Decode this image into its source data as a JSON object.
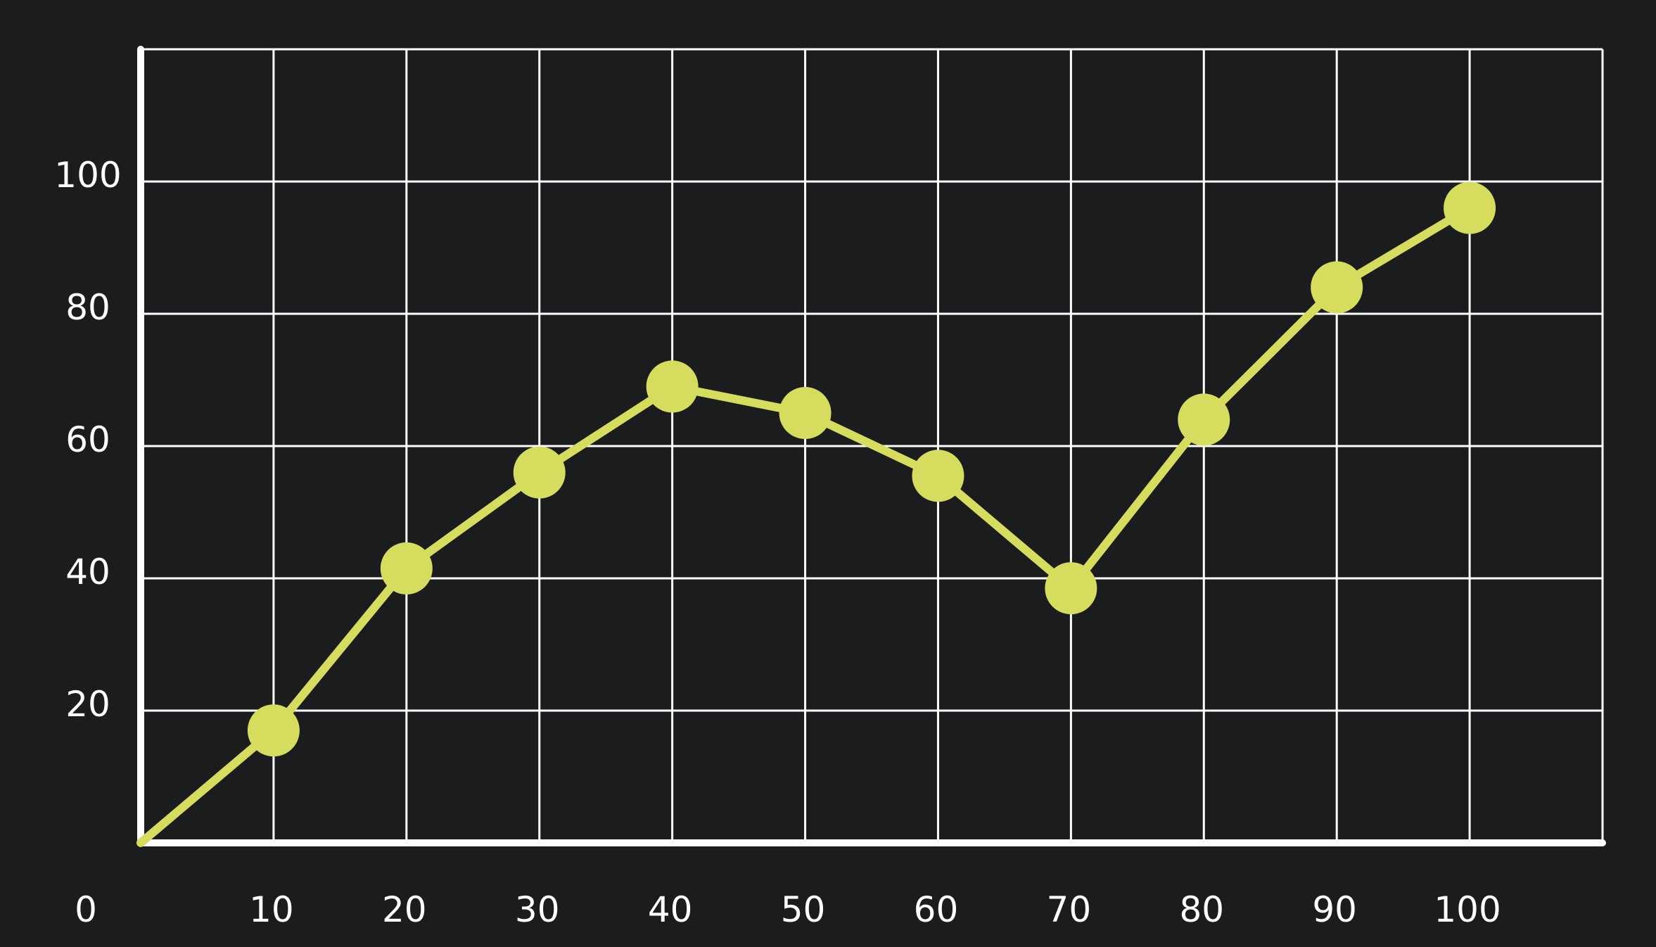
{
  "chart_data": {
    "type": "line",
    "title": "",
    "xlabel": "",
    "ylabel": "",
    "x": [
      0,
      10,
      20,
      30,
      40,
      50,
      60,
      70,
      80,
      90,
      100
    ],
    "series": [
      {
        "values": [
          0,
          17,
          41.5,
          56,
          69,
          65,
          55.5,
          38.5,
          64,
          84,
          96
        ],
        "markers": [
          false,
          true,
          true,
          true,
          true,
          true,
          true,
          true,
          true,
          true,
          true
        ]
      }
    ],
    "xlim": [
      0,
      110
    ],
    "ylim": [
      0,
      120
    ],
    "xticks": [
      10,
      20,
      30,
      40,
      50,
      60,
      70,
      80,
      90,
      100
    ],
    "yticks": [
      20,
      40,
      60,
      80,
      100
    ],
    "origin_label": "0",
    "grid": true,
    "colors": {
      "background": "#1b1c1e",
      "grid": "#ffffff",
      "axis": "#ffffff",
      "series": "#d5dc5e",
      "text": "#ffffff"
    }
  }
}
